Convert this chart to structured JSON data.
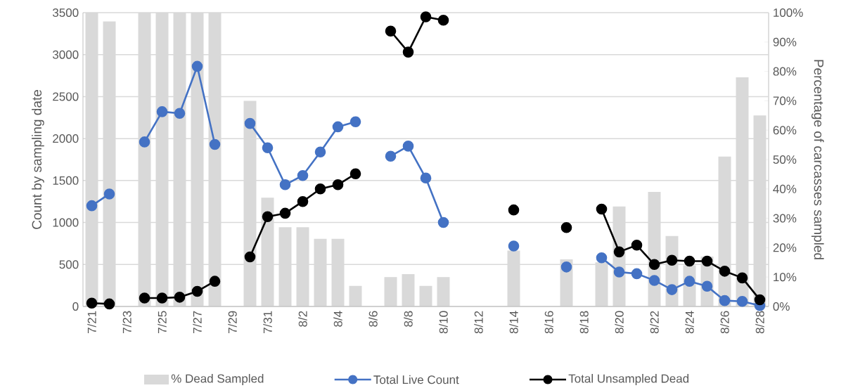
{
  "chart_data": {
    "type": "line",
    "categories": [
      "7/21",
      null,
      "7/23",
      null,
      "7/25",
      null,
      "7/27",
      null,
      "7/29",
      null,
      "7/31",
      null,
      "8/2",
      null,
      "8/4",
      null,
      "8/6",
      null,
      "8/8",
      null,
      "8/10",
      null,
      "8/12",
      null,
      "8/14",
      null,
      "8/16",
      null,
      "8/18",
      null,
      "8/20",
      null,
      "8/22",
      null,
      "8/24",
      null,
      "8/26",
      null,
      "8/28"
    ],
    "series": [
      {
        "name": "% Dead Sampled",
        "type": "bar",
        "axis": "y2",
        "color": "#d9d9d9",
        "values": [
          100,
          97,
          null,
          100,
          100,
          100,
          100,
          100,
          null,
          70,
          37,
          27,
          27,
          23,
          23,
          7,
          null,
          10,
          11,
          7,
          10,
          null,
          null,
          null,
          19,
          null,
          null,
          16,
          null,
          15,
          34,
          null,
          39,
          24,
          14,
          17,
          51,
          78,
          65
        ]
      },
      {
        "name": "Total Live Count",
        "color": "#4472c4",
        "values": [
          1200,
          1340,
          null,
          1960,
          2320,
          2300,
          2860,
          1930,
          null,
          2180,
          1890,
          1450,
          1560,
          1840,
          2140,
          2200,
          null,
          1790,
          1910,
          1530,
          1000,
          null,
          null,
          null,
          720,
          null,
          null,
          470,
          null,
          580,
          410,
          390,
          310,
          200,
          300,
          240,
          70,
          60,
          10
        ]
      },
      {
        "name": "Total Unsampled Dead",
        "color": "#000000",
        "values": [
          40,
          30,
          null,
          100,
          100,
          110,
          180,
          300,
          null,
          590,
          1070,
          1110,
          1250,
          1400,
          1450,
          1580,
          null,
          3280,
          3030,
          3450,
          3410,
          null,
          null,
          null,
          1150,
          null,
          null,
          940,
          null,
          1160,
          650,
          730,
          500,
          550,
          540,
          540,
          420,
          340,
          80
        ]
      }
    ],
    "ylabel": "Count by sampling date",
    "y2label": "Percentage of carcasses sampled",
    "ylim": [
      0,
      3500
    ],
    "yticks": [
      0,
      500,
      1000,
      1500,
      2000,
      2500,
      3000,
      3500
    ],
    "y2lim": [
      0,
      100
    ],
    "y2ticks": [
      {
        "value": 0,
        "label": "0%"
      },
      {
        "value": 10,
        "label": "10%"
      },
      {
        "value": 20,
        "label": "20%"
      },
      {
        "value": 30,
        "label": "30%"
      },
      {
        "value": 40,
        "label": "40%"
      },
      {
        "value": 50,
        "label": "50%"
      },
      {
        "value": 60,
        "label": "60%"
      },
      {
        "value": 70,
        "label": "70%"
      },
      {
        "value": 80,
        "label": "80%"
      },
      {
        "value": 90,
        "label": "90%"
      },
      {
        "value": 100,
        "label": "100%"
      }
    ],
    "grid": "y",
    "legend": "bottom",
    "marker": "circle",
    "line_style": "solid"
  }
}
